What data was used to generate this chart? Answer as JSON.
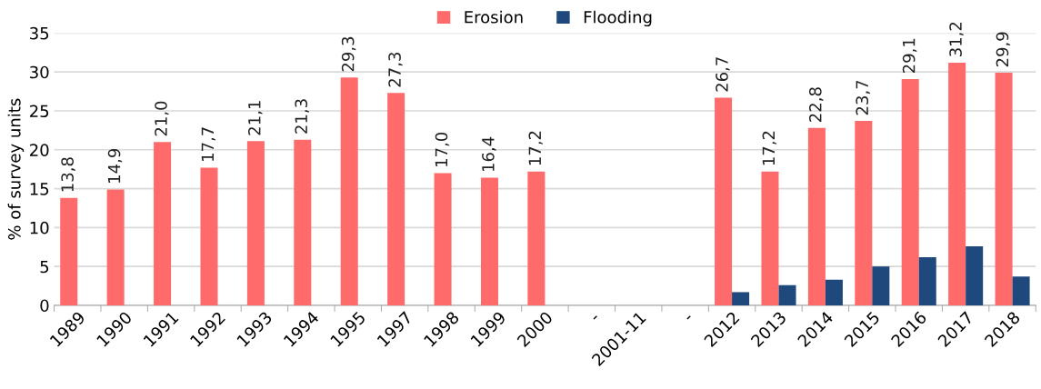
{
  "chart_data": {
    "type": "bar",
    "ylabel": "% of survey units",
    "categories": [
      "1989",
      "1990",
      "1991",
      "1992",
      "1993",
      "1994",
      "1995",
      "1997",
      "1998",
      "1999",
      "2000",
      "-",
      "2001-11",
      "-",
      "2012",
      "2013",
      "2014",
      "2015",
      "2016",
      "2017",
      "2018"
    ],
    "series": [
      {
        "name": "Erosion",
        "color": "#ff6b6b",
        "values": [
          13.8,
          14.9,
          21.0,
          17.7,
          21.1,
          21.3,
          29.3,
          27.3,
          17.0,
          16.4,
          17.2,
          null,
          null,
          null,
          26.7,
          17.2,
          22.8,
          23.7,
          29.1,
          31.2,
          29.9
        ],
        "value_labels": [
          "13,8",
          "14,9",
          "21,0",
          "17,7",
          "21,1",
          "21,3",
          "29,3",
          "27,3",
          "17,0",
          "16,4",
          "17,2",
          null,
          null,
          null,
          "26,7",
          "17,2",
          "22,8",
          "23,7",
          "29,1",
          "31,2",
          "29,9"
        ]
      },
      {
        "name": "Flooding",
        "color": "#1f497d",
        "values": [
          null,
          null,
          null,
          null,
          null,
          null,
          null,
          null,
          null,
          null,
          null,
          null,
          null,
          null,
          1.7,
          2.6,
          3.3,
          5.0,
          6.2,
          7.6,
          3.7
        ]
      }
    ],
    "ylim": [
      0,
      35
    ],
    "yticks": [
      0,
      5,
      10,
      15,
      20,
      25,
      30,
      35
    ],
    "grid": "y",
    "legend": "top"
  }
}
